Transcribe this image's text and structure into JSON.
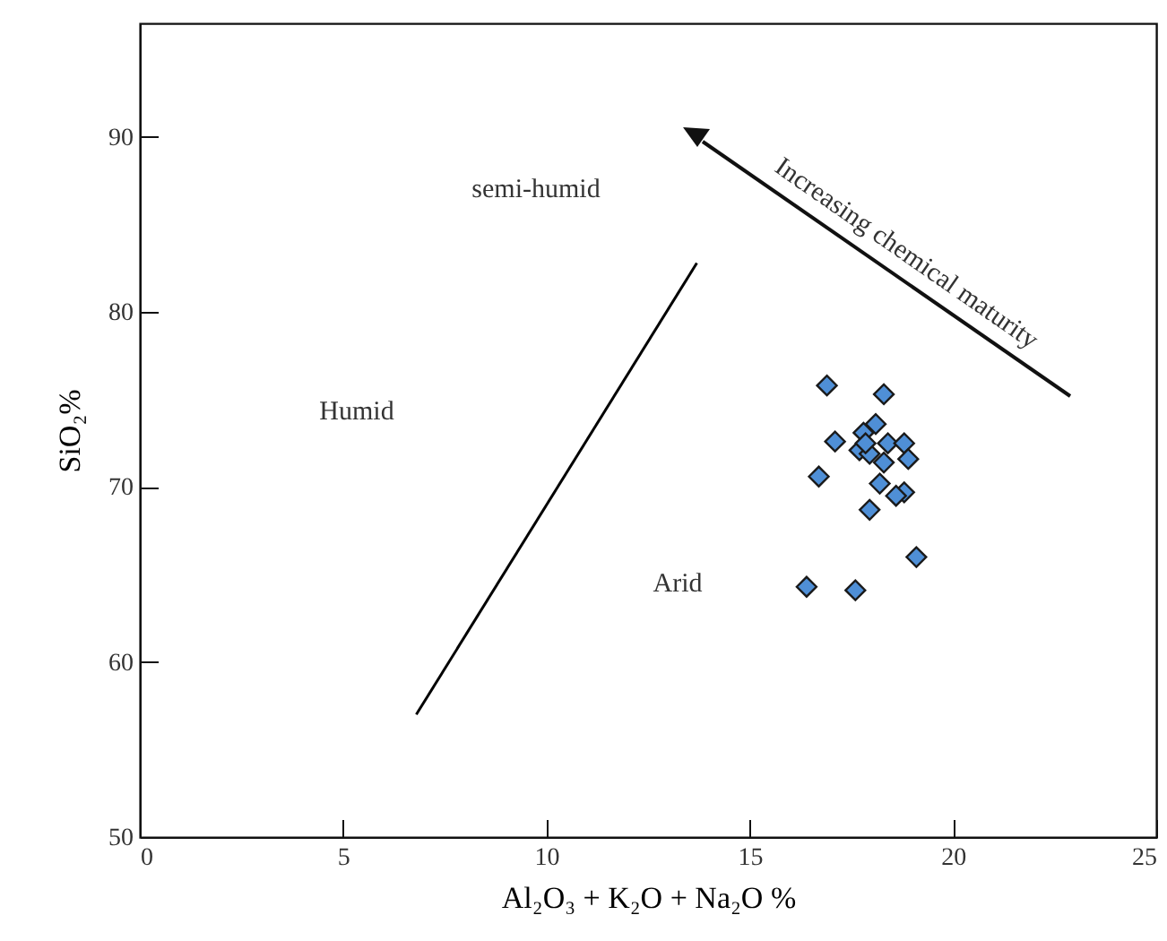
{
  "chart_data": {
    "type": "scatter",
    "xlabel": "Al₂O₃ + K₂O + Na₂O %",
    "ylabel": "SiO₂%",
    "xlim": [
      0,
      25
    ],
    "ylim": [
      50,
      96.5
    ],
    "xticks": [
      0,
      5,
      10,
      15,
      20,
      25
    ],
    "yticks": [
      50,
      60,
      70,
      80,
      90
    ],
    "annotations": [
      "Humid",
      "semi-humid",
      "Arid",
      "Increasing chemical maturity"
    ],
    "series": [
      {
        "marker": "diamond",
        "color": "#4f8fd6",
        "x": [
          16.9,
          18.3,
          17.1,
          16.7,
          18.1,
          17.8,
          17.7,
          17.95,
          18.4,
          18.8,
          18.9,
          18.3,
          18.2,
          18.8,
          18.6,
          17.95,
          19.1,
          16.4,
          17.6,
          17.85
        ],
        "values": [
          75.8,
          75.3,
          72.6,
          70.6,
          73.6,
          73.1,
          72.1,
          71.9,
          72.5,
          72.5,
          71.6,
          71.4,
          70.2,
          69.7,
          69.5,
          68.7,
          66.0,
          64.3,
          64.1,
          72.5
        ]
      },
      {
        "type": "line",
        "color": "#000000",
        "x": [
          6.8,
          13.7
        ],
        "values": [
          57.0,
          82.8
        ]
      }
    ]
  }
}
